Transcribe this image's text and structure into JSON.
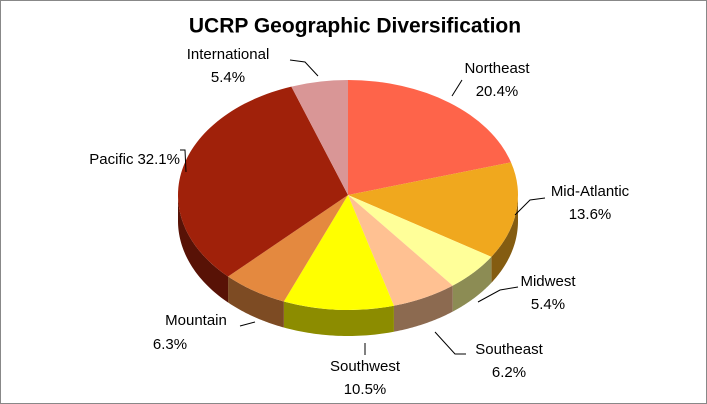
{
  "chart_data": {
    "type": "pie3d",
    "title": "UCRP Geographic Diversification",
    "categories": [
      "Northeast",
      "Mid-Atlantic",
      "Midwest",
      "Southeast",
      "Southwest",
      "Mountain",
      "Pacific",
      "International"
    ],
    "values": [
      20.4,
      13.6,
      5.4,
      6.2,
      10.5,
      6.3,
      32.1,
      5.4
    ],
    "value_labels": [
      "20.4%",
      "13.6%",
      "5.4%",
      "6.2%",
      "10.5%",
      "6.3%",
      "32.1%",
      "5.4%"
    ],
    "colors": [
      "#fe644a",
      "#f0a81e",
      "#ffff99",
      "#ffc192",
      "#ffff00",
      "#e4893f",
      "#a0210a",
      "#d99696"
    ]
  }
}
